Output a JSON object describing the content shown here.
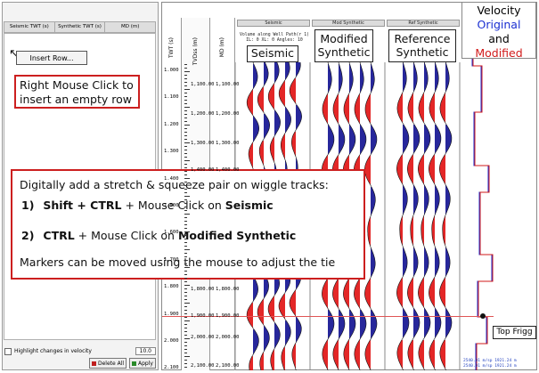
{
  "left_panel": {
    "columns": [
      "Seismic TWT (s)",
      "Synthetic TWT (s)",
      "MD (m)"
    ],
    "insert_row_label": "Insert Row...",
    "highlight_label": "Highlight changes in velocity",
    "highlight_value": "10.0",
    "delete_all_label": "Delete All",
    "apply_label": "Apply"
  },
  "callouts": {
    "right_click_line1": "Right Mouse Click to",
    "right_click_line2": "insert an empty row",
    "digital_title": "Digitally add a stretch & squeeze pair on wiggle tracks:",
    "step1_number": "1)",
    "step1_keys": "Shift + CTRL",
    "step1_mid": " + Mouse Click on ",
    "step1_target": "Seismic",
    "step2_number": "2)",
    "step2_keys": "CTRL",
    "step2_mid": " + Mouse Click on ",
    "step2_target": "Modified Synthetic",
    "markers_note": "Markers can be moved using the mouse to adjust the tie"
  },
  "axes": {
    "twt_header": "TWT (s)",
    "tvdss_header": "TVDss (m)",
    "md_header": "MD (m)",
    "twt_ticks": [
      "1.000",
      "1.100",
      "1.200",
      "1.300",
      "1.400",
      "1.500",
      "1.600",
      "1.700",
      "1.800",
      "1.900",
      "2.000",
      "2.100"
    ],
    "tvdss_ticks": [
      "1,100.00",
      "1,200.00",
      "1,300.00",
      "1,400.00",
      "1,800.00",
      "1,900.00",
      "2,000.00",
      "2,100.00"
    ],
    "md_ticks": [
      "1,100.00",
      "1,200.00",
      "1,300.00",
      "1,400.00",
      "1,800.00",
      "1,900.00",
      "2,000.00",
      "2,100.00"
    ]
  },
  "tracks": {
    "seismic_header": "Seismic",
    "seismic_sub": "Volume along Well Path(r 1)",
    "seismic_sub2": "IL: 0 XL: 0 Angles: 10",
    "mod_header": "Mod Synthetic",
    "ref_header": "Ref Synthetic",
    "seismic_label": "Seismic",
    "modified_label_1": "Modified",
    "modified_label_2": "Synthetic",
    "reference_label_1": "Reference",
    "reference_label_2": "Synthetic"
  },
  "velocity": {
    "title": "Velocity",
    "original": "Original",
    "and_word": "and",
    "modified": "Modified",
    "original_color": "#1a2fd1",
    "modified_color": "#d11a1a",
    "readout_1": "2540.01 m/sp 1921.24 m",
    "readout_2": "2540.01 m/sp 1921.24 m"
  },
  "marker": {
    "name": "Top Frigg"
  },
  "colors": {
    "callout_border": "#cc1f1f",
    "wiggle_red": "#e01010",
    "wiggle_blue": "#101090",
    "marker_line": "#e05555"
  }
}
